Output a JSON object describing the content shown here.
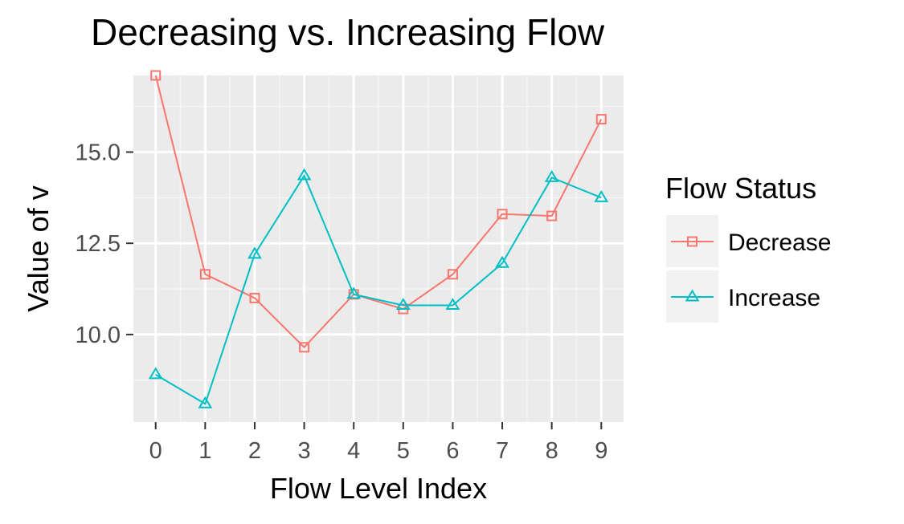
{
  "chart_data": {
    "type": "line",
    "title": "Decreasing vs. Increasing Flow",
    "xlabel": "Flow Level Index",
    "ylabel": "Value of v",
    "x": [
      0,
      1,
      2,
      3,
      4,
      5,
      6,
      7,
      8,
      9
    ],
    "x_tick_labels": [
      "0",
      "1",
      "2",
      "3",
      "4",
      "5",
      "6",
      "7",
      "8",
      "9"
    ],
    "y_ticks": [
      10.0,
      12.5,
      15.0
    ],
    "y_tick_labels": [
      "10.0",
      "12.5",
      "15.0"
    ],
    "xlim": [
      -0.45,
      9.45
    ],
    "ylim": [
      7.6,
      17.1
    ],
    "grid": true,
    "legend": {
      "title": "Flow Status",
      "position": "right"
    },
    "series": [
      {
        "name": "Decrease",
        "color": "#F8766D",
        "marker": "square",
        "values": [
          17.1,
          11.65,
          11.0,
          9.65,
          11.1,
          10.7,
          11.65,
          13.3,
          13.25,
          15.9
        ]
      },
      {
        "name": "Increase",
        "color": "#00BFC4",
        "marker": "triangle",
        "values": [
          8.9,
          8.1,
          12.2,
          14.35,
          11.1,
          10.8,
          10.8,
          11.95,
          14.3,
          13.75
        ]
      }
    ]
  }
}
